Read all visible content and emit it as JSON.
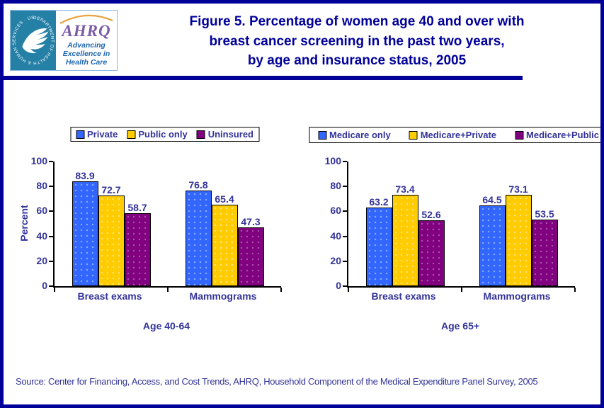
{
  "header": {
    "title": "Figure 5. Percentage of women age 40 and over with\nbreast cancer screening in the past two years,\nby age and insurance status, 2005"
  },
  "logo": {
    "hhs_ring_text": "DEPARTMENT OF HEALTH & HUMAN SERVICES · USA",
    "ahrq": "AHRQ",
    "tagline": "Advancing\nExcellence in\nHealth Care"
  },
  "footer": {
    "source": "Source: Center for Financing, Access, and Cost Trends, AHRQ, Household Component of the Medical Expenditure Panel Survey, 2005"
  },
  "colors": {
    "frame_border": "#000099",
    "title_text": "#000099",
    "chart_text": "#333399",
    "bar_blue": "#3366FF",
    "bar_gold": "#FFCC00",
    "bar_purple": "#800080"
  },
  "chart_data": [
    {
      "type": "bar",
      "categories": [
        "Breast exams",
        "Mammograms"
      ],
      "series": [
        {
          "name": "Private",
          "values": [
            83.9,
            76.8
          ],
          "color": "#3366FF",
          "dot": "#85ADFF"
        },
        {
          "name": "Public only",
          "values": [
            72.7,
            65.4
          ],
          "color": "#FFCC00",
          "dot": "#FFE27F"
        },
        {
          "name": "Uninsured",
          "values": [
            58.7,
            47.3
          ],
          "color": "#800080",
          "dot": "#A855A8"
        }
      ],
      "xlabel": "Age 40-64",
      "ylabel": "Percent",
      "ylim": [
        0,
        100
      ],
      "yticks": [
        0,
        20,
        40,
        60,
        80,
        100
      ],
      "grid": false,
      "legend_position": "top",
      "data_labels": true
    },
    {
      "type": "bar",
      "categories": [
        "Breast exams",
        "Mammograms"
      ],
      "series": [
        {
          "name": "Medicare only",
          "values": [
            63.2,
            64.5
          ],
          "color": "#3366FF",
          "dot": "#85ADFF"
        },
        {
          "name": "Medicare+Private",
          "values": [
            73.4,
            73.1
          ],
          "color": "#FFCC00",
          "dot": "#FFE27F"
        },
        {
          "name": "Medicare+Public",
          "values": [
            52.6,
            53.5
          ],
          "color": "#800080",
          "dot": "#A855A8"
        }
      ],
      "xlabel": "Age 65+",
      "ylabel": "",
      "ylim": [
        0,
        100
      ],
      "yticks": [
        0,
        20,
        40,
        60,
        80,
        100
      ],
      "grid": false,
      "legend_position": "top",
      "data_labels": true
    }
  ]
}
